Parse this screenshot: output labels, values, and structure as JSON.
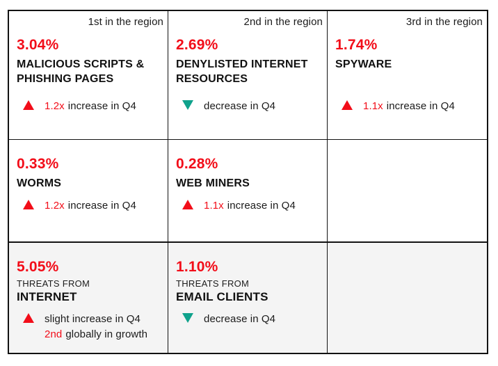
{
  "theme": {
    "accent_red": "#f20d19",
    "accent_teal": "#0fa28c",
    "shaded_row_bg": "#f4f4f4",
    "border_color": "#121212"
  },
  "grid": {
    "rows": [
      {
        "cells": [
          {
            "rank_label": "1st in the region",
            "percent": "3.04%",
            "title": "MALICIOUS SCRIPTS & PHISHING PAGES",
            "trend": {
              "direction": "up",
              "highlight": "1.2x",
              "text": "increase in Q4"
            }
          },
          {
            "rank_label": "2nd in the region",
            "percent": "2.69%",
            "title": "DENYLISTED INTERNET RESOURCES",
            "trend": {
              "direction": "down",
              "highlight": "",
              "text": "decrease in Q4"
            }
          },
          {
            "rank_label": "3rd in the region",
            "percent": "1.74%",
            "title": "SPYWARE",
            "trend": {
              "direction": "up",
              "highlight": "1.1x",
              "text": "increase in Q4"
            }
          }
        ]
      },
      {
        "cells": [
          {
            "percent": "0.33%",
            "title": "WORMS",
            "trend": {
              "direction": "up",
              "highlight": "1.2x",
              "text": "increase in Q4"
            }
          },
          {
            "percent": "0.28%",
            "title": "WEB MINERS",
            "trend": {
              "direction": "up",
              "highlight": "1.1x",
              "text": "increase in Q4"
            }
          },
          {}
        ]
      },
      {
        "cells": [
          {
            "percent": "5.05%",
            "subtitle": "THREATS FROM",
            "title": "INTERNET",
            "trend": {
              "direction": "up",
              "highlight": "",
              "text": "slight increase in Q4"
            },
            "trend_line2": {
              "highlight": "2nd",
              "text": "globally in growth"
            }
          },
          {
            "percent": "1.10%",
            "subtitle": "THREATS FROM",
            "title": "EMAIL CLIENTS",
            "trend": {
              "direction": "down",
              "highlight": "",
              "text": "decrease in Q4"
            }
          },
          {}
        ]
      }
    ]
  },
  "chart_data": {
    "type": "table",
    "title": "Threat statistics by rank in the region",
    "columns": [
      "1st in the region",
      "2nd in the region",
      "3rd in the region"
    ],
    "rows": [
      [
        {
          "category": "Malicious scripts & phishing pages",
          "value_pct": 3.04,
          "trend": "1.2x increase in Q4"
        },
        {
          "category": "Denylisted internet resources",
          "value_pct": 2.69,
          "trend": "decrease in Q4"
        },
        {
          "category": "Spyware",
          "value_pct": 1.74,
          "trend": "1.1x increase in Q4"
        }
      ],
      [
        {
          "category": "Worms",
          "value_pct": 0.33,
          "trend": "1.2x increase in Q4"
        },
        {
          "category": "Web miners",
          "value_pct": 0.28,
          "trend": "1.1x increase in Q4"
        },
        null
      ],
      [
        {
          "category": "Threats from internet",
          "value_pct": 5.05,
          "trend": "slight increase in Q4; 2nd globally in growth"
        },
        {
          "category": "Threats from email clients",
          "value_pct": 1.1,
          "trend": "decrease in Q4"
        },
        null
      ]
    ]
  }
}
